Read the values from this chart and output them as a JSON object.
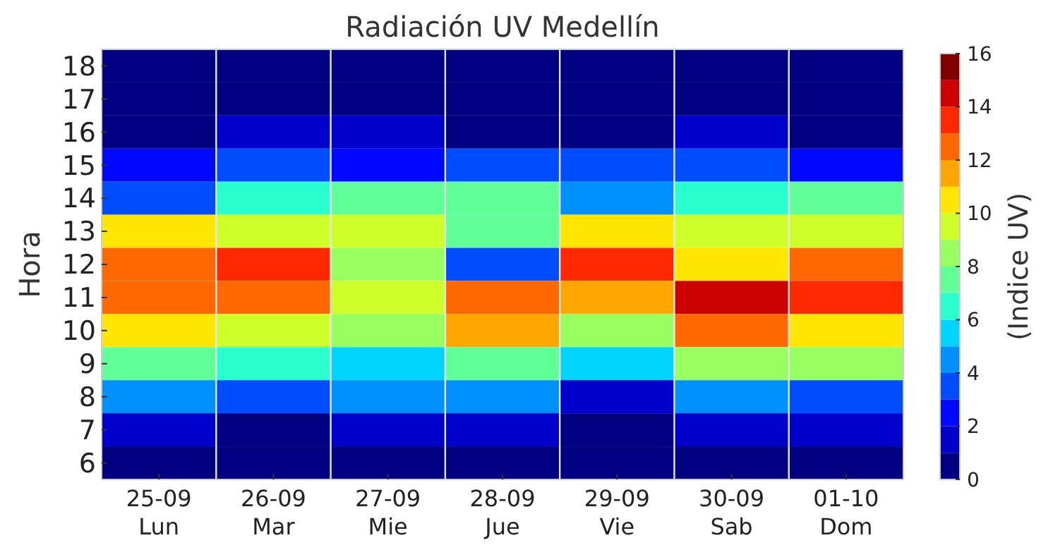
{
  "chart_data": {
    "type": "heatmap",
    "title": "Radiación UV Medellín",
    "ylabel": "Hora",
    "clabel": "(Indice UV)",
    "categories": [
      "25-09\nLun",
      "26-09\nMar",
      "27-09\nMie",
      "28-09\nJue",
      "29-09\nVie",
      "30-09\nSab",
      "01-10\nDom"
    ],
    "y_categories": [
      "18",
      "17",
      "16",
      "15",
      "14",
      "13",
      "12",
      "11",
      "10",
      "9",
      "8",
      "7",
      "6"
    ],
    "cells": [
      [
        0,
        0,
        0,
        0,
        0,
        0,
        0
      ],
      [
        0,
        0,
        0,
        0,
        0,
        0,
        0
      ],
      [
        0,
        1,
        1,
        0,
        0,
        1,
        0
      ],
      [
        2,
        3,
        2,
        3,
        3,
        3,
        2
      ],
      [
        3,
        6,
        7,
        7,
        4,
        6,
        7
      ],
      [
        10,
        9,
        9,
        7,
        10,
        9,
        9
      ],
      [
        12,
        13,
        8,
        3,
        13,
        10,
        12
      ],
      [
        12,
        12,
        9,
        12,
        11,
        14,
        13
      ],
      [
        10,
        9,
        8,
        11,
        8,
        12,
        10
      ],
      [
        7,
        6,
        5,
        7,
        5,
        8,
        8
      ],
      [
        4,
        3,
        4,
        4,
        1,
        4,
        3
      ],
      [
        1,
        0,
        1,
        1,
        0,
        1,
        1
      ],
      [
        0,
        0,
        0,
        0,
        0,
        0,
        0
      ]
    ],
    "clim": [
      0,
      16
    ],
    "cticks": [
      0,
      2,
      4,
      6,
      8,
      10,
      12,
      14,
      16
    ],
    "grid": "x"
  }
}
